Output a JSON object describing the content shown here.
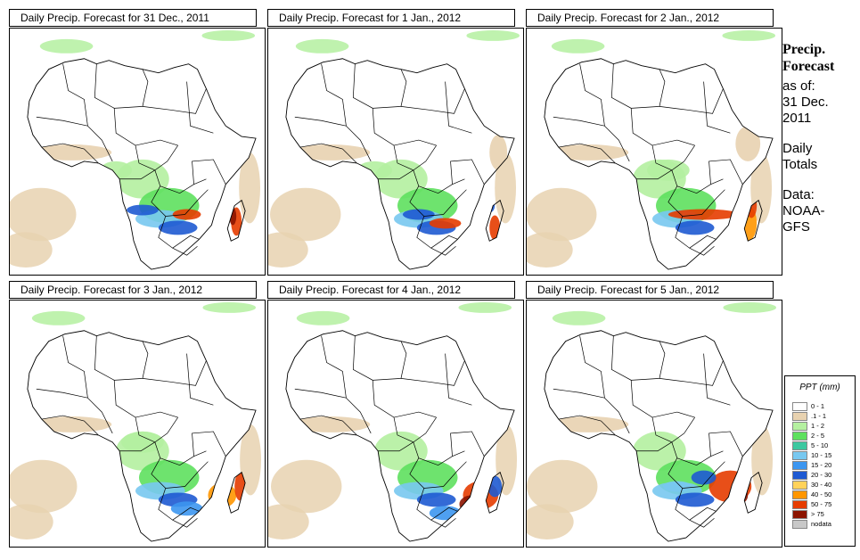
{
  "panels": [
    {
      "title": "Daily Precip. Forecast for  31 Dec., 2011",
      "scenario": 0
    },
    {
      "title": "Daily Precip. Forecast for  1 Jan., 2012",
      "scenario": 1
    },
    {
      "title": "Daily Precip. Forecast for  2 Jan., 2012",
      "scenario": 2
    },
    {
      "title": "Daily Precip. Forecast for  3 Jan., 2012",
      "scenario": 3
    },
    {
      "title": "Daily Precip. Forecast for  4 Jan., 2012",
      "scenario": 4
    },
    {
      "title": "Daily Precip. Forecast for  5 Jan., 2012",
      "scenario": 5
    }
  ],
  "sidebar": {
    "title_line1": "Precip.",
    "title_line2": "Forecast",
    "asof_label": "as of:",
    "date_line1": "31 Dec.",
    "date_line2": "2011",
    "type_line1": "Daily",
    "type_line2": "Totals",
    "source_line1": "Data:",
    "source_line2": "NOAA-",
    "source_line3": "GFS"
  },
  "legend": {
    "title": "PPT (mm)",
    "items": [
      {
        "label": "0 - 1",
        "color": "#ffffff"
      },
      {
        "label": ".1 - 1",
        "color": "#e8d2b0"
      },
      {
        "label": "1 - 2",
        "color": "#b4f0a0"
      },
      {
        "label": "2 - 5",
        "color": "#5ee05e"
      },
      {
        "label": "5 - 10",
        "color": "#3cc8a0"
      },
      {
        "label": "10 - 15",
        "color": "#78c8f0"
      },
      {
        "label": "15 - 20",
        "color": "#3c96f0"
      },
      {
        "label": "20 - 30",
        "color": "#1e5ad2"
      },
      {
        "label": "30 - 40",
        "color": "#ffd25a"
      },
      {
        "label": "40 - 50",
        "color": "#ff9600"
      },
      {
        "label": "50 - 75",
        "color": "#e63c00"
      },
      {
        "label": "> 75",
        "color": "#8c1400"
      },
      {
        "label": "nodata",
        "color": "#c8c8c8"
      }
    ]
  }
}
